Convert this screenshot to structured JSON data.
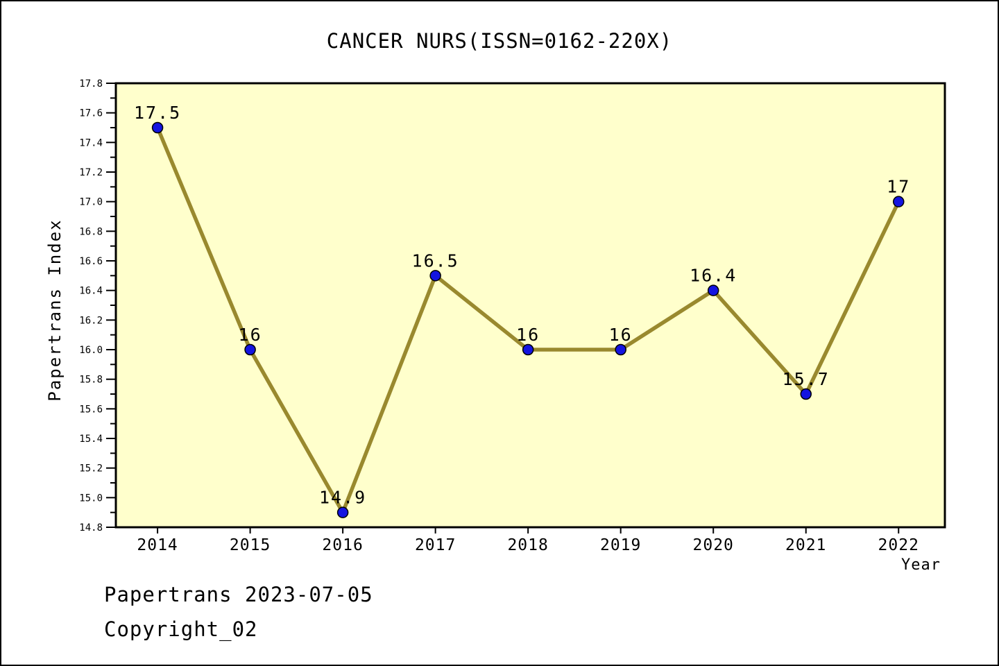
{
  "title": "CANCER NURS(ISSN=0162-220X)",
  "footer": {
    "line1": "Papertrans 2023-07-05",
    "line2": "Copyright_02"
  },
  "chart_data": {
    "type": "line",
    "title": "CANCER NURS(ISSN=0162-220X)",
    "xlabel": "Year",
    "ylabel": "Papertrans Index",
    "x": [
      2014,
      2015,
      2016,
      2017,
      2018,
      2019,
      2020,
      2021,
      2022
    ],
    "values": [
      17.5,
      16,
      14.9,
      16.5,
      16,
      16,
      16.4,
      15.7,
      17
    ],
    "point_labels": [
      "17.5",
      "16",
      "14.9",
      "16.5",
      "16",
      "16",
      "16.4",
      "15.7",
      "17"
    ],
    "x_tick_labels": [
      "2014",
      "2015",
      "2016",
      "2017",
      "2018",
      "2019",
      "2020",
      "2021",
      "2022"
    ],
    "y_tick_labels": [
      "14.8",
      "15.0",
      "15.2",
      "15.4",
      "15.6",
      "15.8",
      "16.0",
      "16.2",
      "16.4",
      "16.6",
      "16.8",
      "17.0",
      "17.2",
      "17.4",
      "17.6",
      "17.8"
    ],
    "ylim": [
      14.8,
      17.8
    ],
    "xlim": [
      2013.55,
      2022.5
    ],
    "y_major_step": 0.2,
    "y_minor_step": 0.1,
    "grid": false,
    "legend": null,
    "colors": {
      "line": "#99892e",
      "marker": "#1414e0",
      "marker_edge": "#000000",
      "plot_bg": "#ffffcc",
      "plot_border": "#000000",
      "text": "#000000",
      "page_bg": "#ffffff"
    }
  }
}
